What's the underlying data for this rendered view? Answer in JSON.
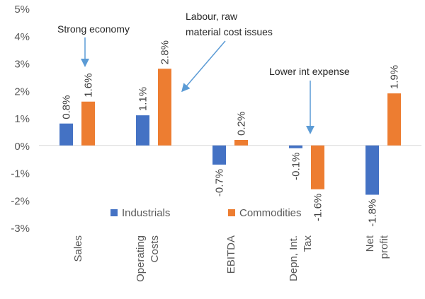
{
  "chart_data": {
    "type": "bar",
    "categories": [
      "Sales",
      "Operating\nCosts",
      "EBITDA",
      "Depn, Int.\nTax",
      "Net\nprofit"
    ],
    "series": [
      {
        "name": "Industrials",
        "values": [
          0.8,
          1.1,
          -0.7,
          -0.1,
          -1.8
        ],
        "labels": [
          "0.8%",
          "1.1%",
          "-0.7%",
          "-0.1%",
          "-1.8%"
        ],
        "color": "#4472C4"
      },
      {
        "name": "Commodities",
        "values": [
          1.6,
          2.8,
          0.2,
          -1.6,
          1.9
        ],
        "labels": [
          "1.6%",
          "2.8%",
          "0.2%",
          "-1.6%",
          "1.9%"
        ],
        "color": "#ED7D31"
      }
    ],
    "ylim": [
      -3,
      5
    ],
    "yticks": [
      "-3%",
      "-2%",
      "-1%",
      "0%",
      "1%",
      "2%",
      "3%",
      "4%",
      "5%"
    ],
    "grid": false,
    "legend": "bottom-center",
    "annotations": [
      {
        "lines": [
          "Strong economy"
        ]
      },
      {
        "lines": [
          "Labour, raw",
          "material cost issues"
        ]
      },
      {
        "lines": [
          "Lower int expense"
        ]
      }
    ],
    "arrow_color": "#5B9BD5"
  }
}
